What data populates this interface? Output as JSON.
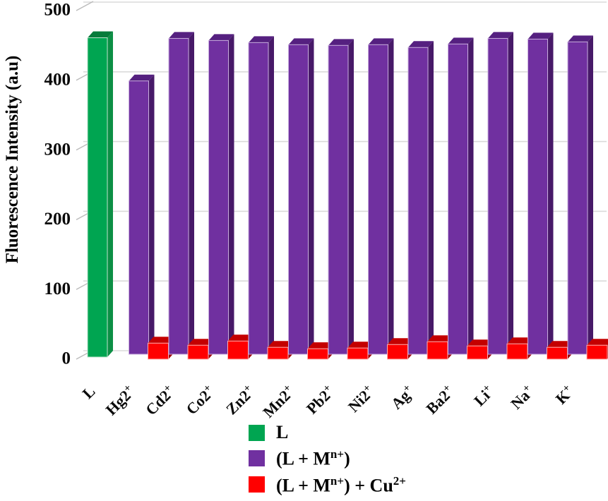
{
  "chart_data": {
    "type": "bar",
    "style": "3d-clustered-columns",
    "title": "",
    "xlabel": "",
    "ylabel": "Fluorescence Intensity (a.u)",
    "ylim": [
      0,
      500
    ],
    "ytick_step": 100,
    "ytick_labels": [
      "0",
      "100",
      "200",
      "300",
      "400",
      "500"
    ],
    "grid": true,
    "background": "#ffffff",
    "gridline_color": "#dadada",
    "categories": [
      "L",
      "Hg2+",
      "Cd2+",
      "Co2+",
      "Zn2+",
      "Mn2+",
      "Pb2+",
      "Ni2+",
      "Ag+",
      "Ba2+",
      "Li+",
      "Na+",
      "K+"
    ],
    "series": [
      {
        "name": "L",
        "colors": {
          "front": "#00A551",
          "top": "#077B3B",
          "side": "#0C8F45",
          "edge": "#bfe3cd"
        },
        "values": [
          458,
          null,
          null,
          null,
          null,
          null,
          null,
          null,
          null,
          null,
          null,
          null,
          null
        ]
      },
      {
        "name": "(L + Mn+)",
        "colors": {
          "front": "#7030A0",
          "top": "#552080",
          "side": "#471968",
          "edge": "#c9aede"
        },
        "values": [
          null,
          392,
          453,
          450,
          447,
          444,
          443,
          444,
          440,
          445,
          453,
          452,
          448
        ]
      },
      {
        "name": "(L + Mn+) + Cu2+",
        "colors": {
          "front": "#FF0000",
          "top": "#C40000",
          "side": "#A00000",
          "edge": "#ffb3b3"
        },
        "values": [
          null,
          23,
          20,
          26,
          17,
          15,
          16,
          21,
          25,
          19,
          22,
          17,
          20
        ]
      }
    ],
    "legend": {
      "position": "bottom-center",
      "items": [
        {
          "color": "#00A551",
          "segments": [
            {
              "t": "L"
            }
          ]
        },
        {
          "color": "#7030A0",
          "segments": [
            {
              "t": "(L + M"
            },
            {
              "t": "n+",
              "sup": true
            },
            {
              "t": ")"
            }
          ]
        },
        {
          "color": "#FF0000",
          "segments": [
            {
              "t": "(L + M"
            },
            {
              "t": "n+",
              "sup": true
            },
            {
              "t": ") + Cu"
            },
            {
              "t": "2+",
              "sup": true
            }
          ]
        }
      ]
    }
  }
}
